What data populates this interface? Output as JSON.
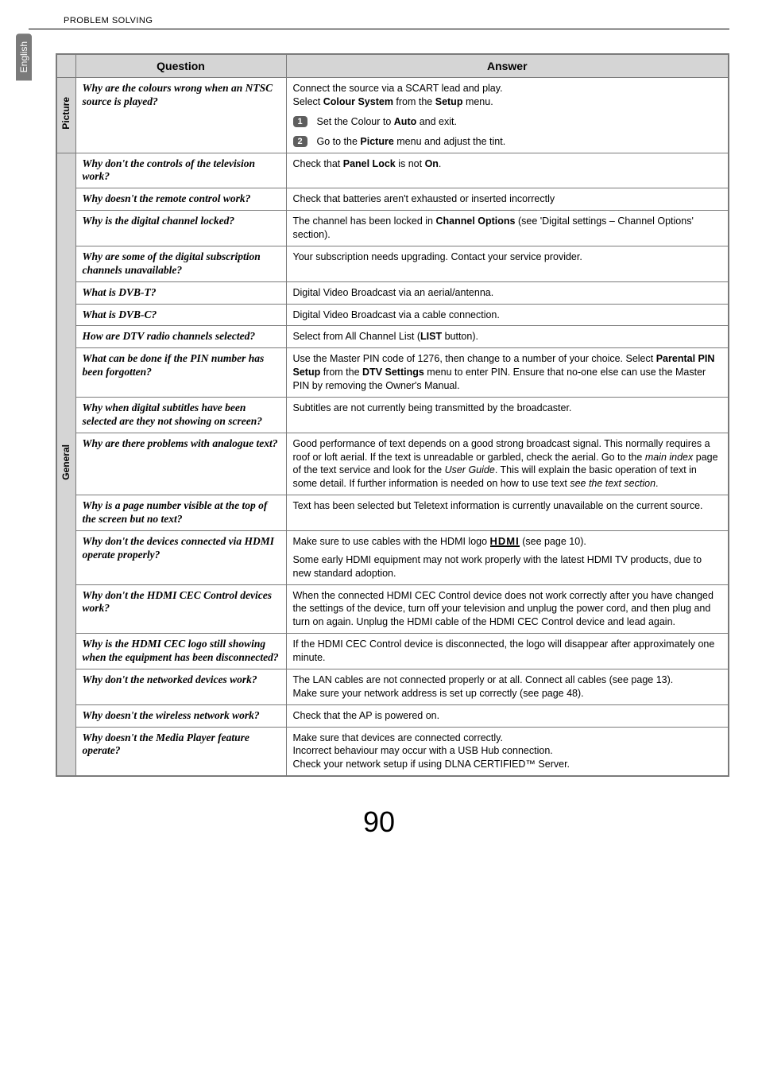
{
  "language_tab": "English",
  "breadcrumb": "PROBLEM SOLVING",
  "columns": {
    "q": "Question",
    "a": "Answer"
  },
  "categories": [
    {
      "label": "Picture",
      "rows": [
        {
          "q": "Why are the colours wrong when an NTSC source is played?",
          "a_intro": "Connect the source via a SCART lead and play.\nSelect <b>Colour System</b> from the <b>Setup</b> menu.",
          "steps": [
            "Set the Colour to <b>Auto</b> and exit.",
            "Go to the <b>Picture</b> menu and adjust the tint."
          ]
        }
      ]
    },
    {
      "label": "General",
      "rows": [
        {
          "q": "Why don't the controls of the television work?",
          "a": "Check that <b>Panel Lock</b> is not <b>On</b>."
        },
        {
          "q": "Why doesn't the remote control work?",
          "a": "Check that batteries aren't exhausted or inserted incorrectly"
        },
        {
          "q_html": "Why is the <span class=\"roman\">digital</span> channel locked?",
          "a": "The channel has been locked in <b>Channel Options</b> (see 'Digital settings – Channel Options' section)."
        },
        {
          "q_html": "Why are some of the <span class=\"roman\">digital</span> subscription channels unavailable?",
          "a": "Your subscription needs upgrading. Contact your service provider."
        },
        {
          "q": "What is DVB-T?",
          "a": "Digital Video Broadcast via an aerial/antenna."
        },
        {
          "q": "What is DVB-C?",
          "a": "Digital Video Broadcast via a cable connection."
        },
        {
          "q": "How are DTV radio channels selected?",
          "a": "Select from All Channel List (<b>LIST</b> button)."
        },
        {
          "q": "What can be done if the PIN number has been forgotten?",
          "a": "Use the Master PIN code of 1276, then change to a number of your choice. Select <b>Parental PIN Setup</b> from the <b>DTV Settings</b> menu to enter PIN. Ensure that no-one else can use the Master PIN by removing the Owner's Manual."
        },
        {
          "q_html": "Why when <span class=\"roman\">digital</span> subtitles have been selected are they not showing on screen?",
          "a": "Subtitles are not currently being transmitted by the broadcaster."
        },
        {
          "q": "Why are there problems with analogue text?",
          "a": "Good performance of text depends on a good strong broadcast signal. This normally requires a roof or loft aerial. If the text is unreadable or garbled, check the aerial. Go to the <i>main index</i> page of the text service and look for the <i>User Guide</i>. This will explain the basic operation of text in some detail. If further information is needed on how to use text <i>see the text section</i>."
        },
        {
          "q": "Why is a page number visible at the top of the screen but no text?",
          "a": "Text has been selected but Teletext information is currently unavailable on the current source."
        },
        {
          "q": "Why don't the devices connected via HDMI operate properly?",
          "a_hdmi": true,
          "a_pre": "Make sure to use cables with the HDMI logo ",
          "a_post": " (see page 10).",
          "a_para2": "Some early HDMI equipment may not work properly with the latest HDMI TV products, due to new standard adoption."
        },
        {
          "q": "Why don't the HDMI CEC Control devices work?",
          "a": "When the connected HDMI CEC Control device does not work correctly after you have changed the settings of the device, turn off your television and unplug the power cord, and then plug and turn on again. Unplug the HDMI cable of the HDMI CEC Control device and lead again."
        },
        {
          "q": "Why is the HDMI CEC logo still showing when the equipment has been disconnected?",
          "a": "If the HDMI CEC Control device is disconnected, the logo will disappear after approximately one minute."
        },
        {
          "q": "Why don't the networked devices work?",
          "a": "The LAN cables are not connected properly or at all. Connect all cables (see page 13).<br>Make sure your network address is set up correctly (see page 48)."
        },
        {
          "q": "Why doesn't the wireless network work?",
          "a": "Check that the AP is powered on."
        },
        {
          "q": "Why doesn't the Media Player feature operate?",
          "a": "Make sure that devices are connected correctly.<br>Incorrect behaviour may occur with a USB Hub connection.<br>Check your network setup if using DLNA CERTIFIED™ Server."
        }
      ]
    }
  ],
  "page_number": "90"
}
